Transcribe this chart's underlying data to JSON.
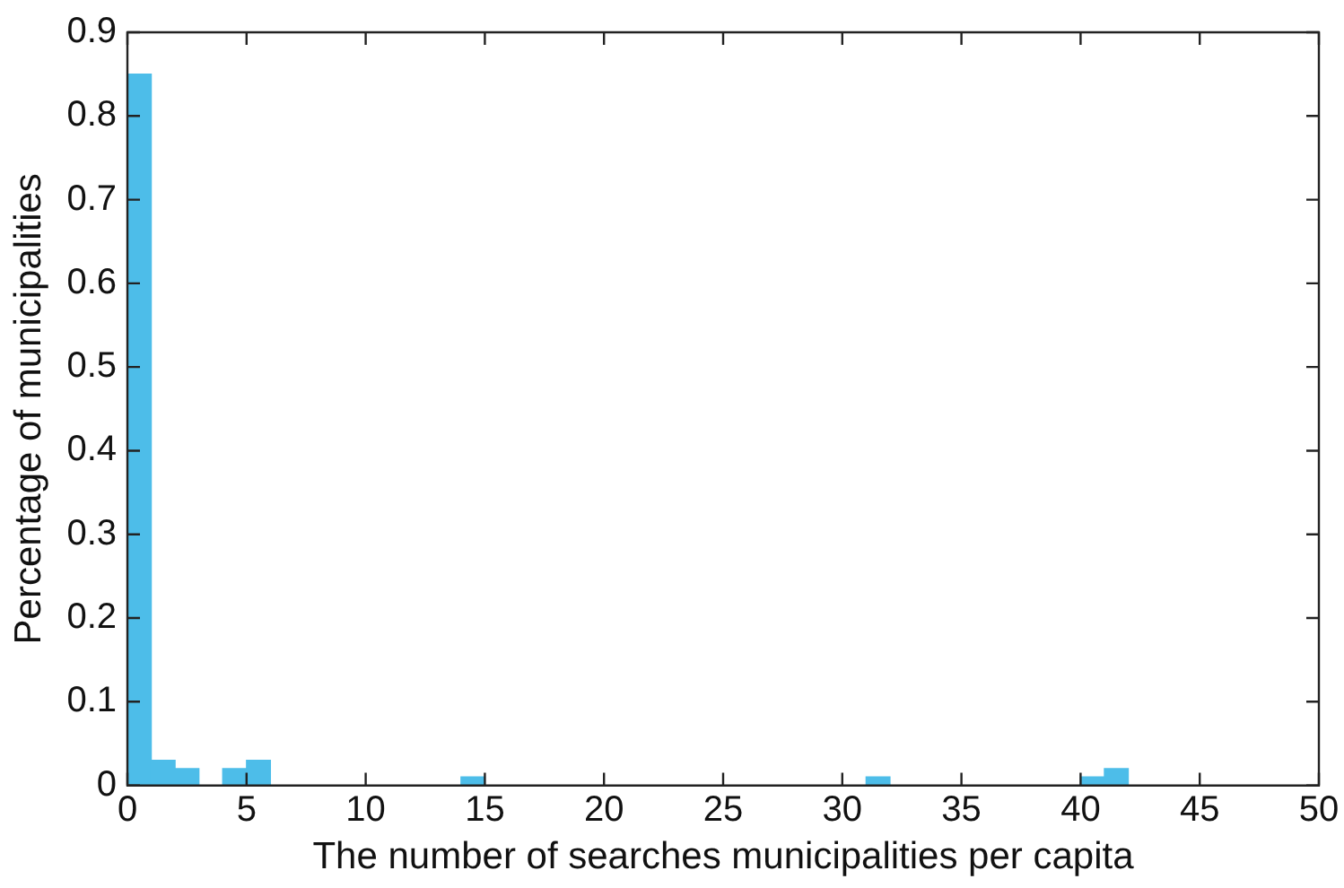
{
  "chart_data": {
    "type": "histogram",
    "xlabel": "The number of searches municipalities per capita",
    "ylabel": "Percentage of municipalities",
    "bins": [
      0,
      1,
      2,
      3,
      4,
      5,
      6,
      7,
      8,
      9,
      10,
      11,
      12,
      13,
      14,
      15,
      16,
      17,
      18,
      19,
      20,
      21,
      22,
      23,
      24,
      25,
      26,
      27,
      28,
      29,
      30,
      31,
      32,
      33,
      34,
      35,
      36,
      37,
      38,
      39,
      40,
      41,
      42
    ],
    "values": [
      0.85,
      0.03,
      0.02,
      0,
      0.02,
      0.03,
      0,
      0,
      0,
      0,
      0,
      0,
      0,
      0,
      0.01,
      0,
      0,
      0,
      0,
      0,
      0,
      0,
      0,
      0,
      0,
      0,
      0,
      0,
      0,
      0,
      0,
      0.01,
      0,
      0,
      0,
      0,
      0,
      0,
      0,
      0,
      0.01,
      0.02
    ],
    "color": "#4dbde9",
    "xlim": [
      0,
      50
    ],
    "xticks": [
      0,
      5,
      10,
      15,
      20,
      25,
      30,
      35,
      40,
      45,
      50
    ],
    "ylim": [
      0,
      0.9
    ],
    "yticks": [
      0,
      0.1,
      0.2,
      0.3,
      0.4,
      0.5,
      0.6,
      0.7,
      0.8,
      0.9
    ],
    "grid": false,
    "legend": false
  }
}
